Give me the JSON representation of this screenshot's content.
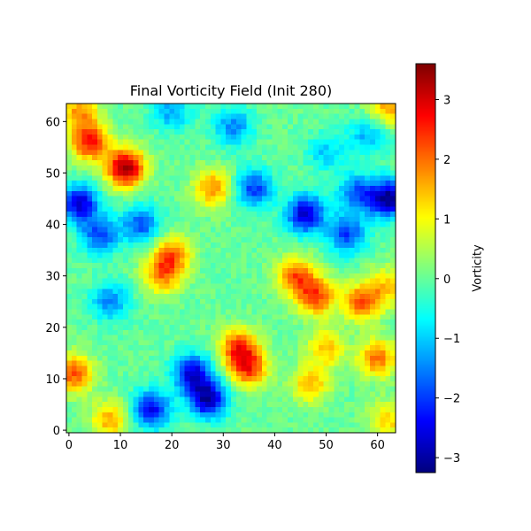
{
  "chart_data": {
    "type": "heatmap",
    "title": "Final Vorticity Field (Init 280)",
    "xlabel": "",
    "ylabel": "",
    "grid_size": 64,
    "xlim": [
      -0.5,
      63.5
    ],
    "ylim": [
      -0.5,
      63.5
    ],
    "x_ticks": [
      0,
      10,
      20,
      30,
      40,
      50,
      60
    ],
    "y_ticks": [
      0,
      10,
      20,
      30,
      40,
      50,
      60
    ],
    "colormap": "jet",
    "colorbar": {
      "label": "Vorticity",
      "min": -3.25,
      "max": 3.6,
      "ticks": [
        -3,
        -2,
        -1,
        0,
        1,
        2,
        3
      ]
    },
    "features": [
      {
        "x": 11,
        "y": 51,
        "value": 3.5
      },
      {
        "x": 4,
        "y": 56,
        "value": 2.6
      },
      {
        "x": 2,
        "y": 62,
        "value": 1.7
      },
      {
        "x": 28,
        "y": 47,
        "value": 1.8
      },
      {
        "x": 20,
        "y": 34,
        "value": 2.0
      },
      {
        "x": 18,
        "y": 30,
        "value": 1.7
      },
      {
        "x": 44,
        "y": 30,
        "value": 2.1
      },
      {
        "x": 48,
        "y": 26,
        "value": 2.3
      },
      {
        "x": 57,
        "y": 25,
        "value": 2.2
      },
      {
        "x": 62,
        "y": 28,
        "value": 1.3
      },
      {
        "x": 33,
        "y": 16,
        "value": 2.3
      },
      {
        "x": 35,
        "y": 12,
        "value": 2.2
      },
      {
        "x": 1,
        "y": 11,
        "value": 2.2
      },
      {
        "x": 60,
        "y": 14,
        "value": 2.0
      },
      {
        "x": 47,
        "y": 9,
        "value": 1.5
      },
      {
        "x": 50,
        "y": 16,
        "value": 1.4
      },
      {
        "x": 8,
        "y": 2,
        "value": 1.6
      },
      {
        "x": 62,
        "y": 2,
        "value": 1.3
      },
      {
        "x": 62,
        "y": 63,
        "value": 1.7
      },
      {
        "x": 2,
        "y": 44,
        "value": -2.7
      },
      {
        "x": 6,
        "y": 38,
        "value": -1.9
      },
      {
        "x": 14,
        "y": 40,
        "value": -1.8
      },
      {
        "x": 36,
        "y": 47,
        "value": -2.0
      },
      {
        "x": 46,
        "y": 42,
        "value": -2.8
      },
      {
        "x": 54,
        "y": 38,
        "value": -2.0
      },
      {
        "x": 62,
        "y": 45,
        "value": -3.1
      },
      {
        "x": 56,
        "y": 46,
        "value": -1.8
      },
      {
        "x": 32,
        "y": 59,
        "value": -1.5
      },
      {
        "x": 20,
        "y": 62,
        "value": -1.3
      },
      {
        "x": 8,
        "y": 25,
        "value": -1.5
      },
      {
        "x": 24,
        "y": 11,
        "value": -2.6
      },
      {
        "x": 27,
        "y": 6,
        "value": -2.9
      },
      {
        "x": 16,
        "y": 4,
        "value": -2.4
      },
      {
        "x": 58,
        "y": 57,
        "value": -1.2
      },
      {
        "x": 50,
        "y": 54,
        "value": -1.0
      }
    ]
  }
}
